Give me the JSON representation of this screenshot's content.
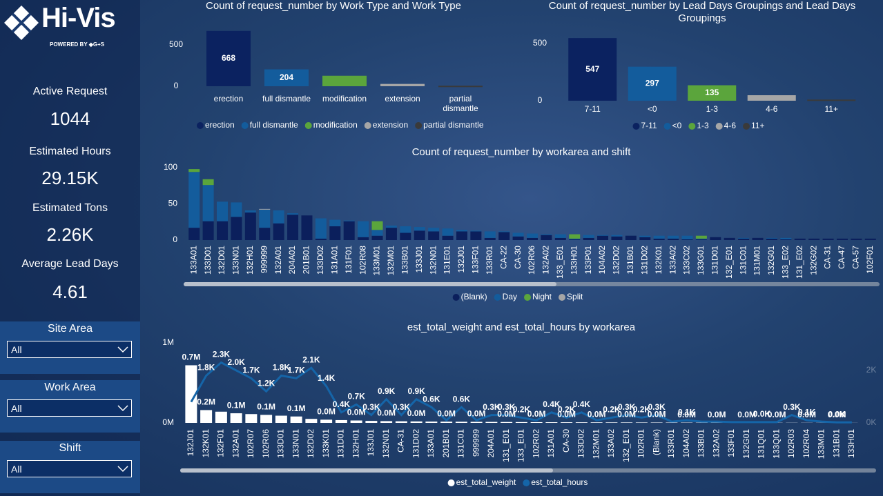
{
  "sidebar": {
    "logo": {
      "name": "Hi-Vis",
      "tagline": "POWERED BY ◆G+S"
    },
    "kpis": [
      {
        "label": "Active Request",
        "value": "1044"
      },
      {
        "label": "Estimated Hours",
        "value": "29.15K"
      },
      {
        "label": "Estimated Tons",
        "value": "2.26K"
      },
      {
        "label": "Average Lead Days",
        "value": "4.61"
      }
    ],
    "slicers": [
      {
        "label": "Site Area",
        "value": "All"
      },
      {
        "label": "Work Area",
        "value": "All"
      },
      {
        "label": "Shift",
        "value": "All"
      }
    ]
  },
  "chart_data": [
    {
      "type": "bar",
      "title": "Count of request_number by Work Type and Work Type",
      "categories": [
        "erection",
        "full dismantle",
        "modification",
        "extension",
        "partial dismantle"
      ],
      "values": [
        668,
        204,
        127,
        28,
        6
      ],
      "colors": [
        "#0b2260",
        "#135c9c",
        "#5ba53c",
        "#a6a6a6",
        "#3a3a3a"
      ],
      "ylim": [
        0,
        700
      ],
      "yticks": [
        0,
        500
      ],
      "legend": "bottom-left"
    },
    {
      "type": "bar",
      "title": "Count of request_number by Lead Days Groupings and Lead Days Groupings",
      "categories": [
        "7-11",
        "<0",
        "1-3",
        "4-6",
        "11+"
      ],
      "values": [
        547,
        297,
        135,
        48,
        10
      ],
      "colors": [
        "#0b2260",
        "#135c9c",
        "#5ba53c",
        "#a6a6a6",
        "#3a3a3a"
      ],
      "ylim": [
        0,
        560
      ],
      "yticks": [
        0,
        500
      ],
      "legend": "bottom"
    },
    {
      "type": "stacked_bar",
      "title": "Count of request_number by workarea and shift",
      "categories": [
        "133A01",
        "133D01",
        "132D01",
        "133N01",
        "132H01",
        "999999",
        "132A01",
        "204A01",
        "201B01",
        "133D02",
        "131A01",
        "131F01",
        "102R08",
        "133M01",
        "132M01",
        "133B01",
        "133J01",
        "132N01",
        "131E01",
        "132J01",
        "133F01",
        "133R01",
        "CA-22",
        "CA-30",
        "102R06",
        "132A02",
        "133_E01",
        "133H01",
        "133P01",
        "104A02",
        "132D02",
        "131B01",
        "131D02",
        "132K01",
        "133A02",
        "133C02",
        "133G01",
        "131D01",
        "132_E01",
        "131C01",
        "131M01",
        "132G01",
        "133_E02",
        "131_E02",
        "132G02",
        "CA-31",
        "CA-47",
        "CA-57",
        "102F01"
      ],
      "series": [
        {
          "name": "(Blank)",
          "color": "#0b1f5c",
          "values": [
            17,
            26,
            26,
            32,
            38,
            17,
            23,
            35,
            34,
            2,
            19,
            26,
            4,
            6,
            17,
            10,
            13,
            12,
            6,
            12,
            12,
            3,
            11,
            5,
            3,
            7,
            3,
            1,
            3,
            6,
            5,
            6,
            4,
            2,
            2,
            1,
            1,
            4,
            3,
            2,
            3,
            2,
            1,
            2,
            2,
            2,
            2,
            2,
            2
          ]
        },
        {
          "name": "Day",
          "color": "#135c9c",
          "values": [
            77,
            50,
            27,
            20,
            3,
            25,
            18,
            2,
            0,
            28,
            9,
            1,
            22,
            8,
            3,
            9,
            5,
            5,
            10,
            2,
            1,
            9,
            1,
            5,
            6,
            1,
            5,
            1,
            4,
            1,
            2,
            0,
            2,
            4,
            4,
            5,
            1,
            0,
            0,
            1,
            0,
            1,
            2,
            0,
            0,
            0,
            0,
            0,
            0
          ]
        },
        {
          "name": "Night",
          "color": "#5ba53c",
          "values": [
            4,
            8,
            0,
            0,
            0,
            0,
            0,
            0,
            0,
            0,
            0,
            0,
            0,
            12,
            0,
            0,
            0,
            0,
            0,
            0,
            0,
            0,
            0,
            0,
            0,
            0,
            0,
            6,
            0,
            0,
            0,
            0,
            0,
            0,
            0,
            0,
            4,
            0,
            0,
            0,
            0,
            0,
            0,
            0,
            0,
            0,
            0,
            0,
            0
          ]
        },
        {
          "name": "Split",
          "color": "#a6a6a6",
          "values": [
            0,
            0,
            0,
            0,
            0,
            1,
            0,
            0,
            0,
            0,
            0,
            0,
            0,
            0,
            0,
            0,
            0,
            0,
            0,
            0,
            0,
            0,
            0,
            0,
            0,
            0,
            0,
            0,
            0,
            0,
            0,
            0,
            0,
            0,
            0,
            0,
            0,
            0,
            0,
            0,
            0,
            0,
            0,
            0,
            0,
            0,
            0,
            0,
            0
          ]
        }
      ],
      "ylim": [
        0,
        100
      ],
      "yticks": [
        0,
        50,
        100
      ],
      "legend": "bottom"
    },
    {
      "type": "combo",
      "title": "est_total_weight and est_total_hours by workarea",
      "categories": [
        "132J01",
        "132K01",
        "132F01",
        "132A01",
        "102R07",
        "102R06",
        "133D01",
        "133N01",
        "132D02",
        "133K01",
        "131D01",
        "132H01",
        "133J01",
        "132N01",
        "CA-31",
        "131D02",
        "133A01",
        "201B01",
        "131C01",
        "999999",
        "204A01",
        "131_E01",
        "133_E01",
        "102R02",
        "131A01",
        "CA-30",
        "133D02",
        "132M01",
        "133A02",
        "132_E01",
        "102R01",
        "(Blank)",
        "133R01",
        "104A02",
        "133B01",
        "132A02",
        "133F01",
        "132G01",
        "131Q01",
        "133Q01",
        "102R03",
        "102R04",
        "133M01",
        "131B01",
        "133H01"
      ],
      "series": [
        {
          "name": "est_total_weight",
          "type": "bar",
          "color": "#ffffff",
          "values": [
            720000,
            160000,
            140000,
            120000,
            110000,
            100000,
            90000,
            80000,
            50000,
            40000,
            35000,
            30000,
            25000,
            22000,
            20000,
            18000,
            16000,
            15000,
            14000,
            13000,
            12000,
            11000,
            10000,
            9000,
            8000,
            7500,
            7000,
            6500,
            6000,
            5500,
            5000,
            4500,
            4000,
            3500,
            3000,
            2800,
            2600,
            2400,
            2200,
            2000,
            1800,
            1600,
            1400,
            1200,
            1000
          ],
          "value_labels": [
            "0.7M",
            "0.2M",
            null,
            "0.1M",
            null,
            "0.1M",
            null,
            "0.1M",
            null,
            "0.0M",
            null,
            "0.0M",
            null,
            "0.0M",
            null,
            "0.0M",
            null,
            "0.0M",
            null,
            "0.0M",
            null,
            "0.0M",
            null,
            "0.0M",
            null,
            "0.0M",
            null,
            "0.0M",
            null,
            "0.0M",
            null,
            "0.0M",
            null,
            "0.0M",
            null,
            "0.0M",
            null,
            "0.0M",
            null,
            "0.0M",
            null,
            "0.0M",
            null,
            "0.0M",
            null
          ]
        },
        {
          "name": "est_total_hours",
          "type": "line",
          "axis": "y2",
          "color": "#1565a8",
          "values": [
            800,
            1800,
            2300,
            2000,
            1700,
            1200,
            1800,
            1700,
            2100,
            1400,
            400,
            700,
            300,
            900,
            300,
            900,
            600,
            100,
            600,
            100,
            300,
            300,
            200,
            100,
            400,
            200,
            400,
            100,
            200,
            300,
            200,
            300,
            50,
            100,
            50,
            50,
            30,
            30,
            30,
            30,
            300,
            100,
            50,
            20,
            20
          ],
          "value_labels": [
            null,
            "1.8K",
            "2.3K",
            "2.0K",
            "1.7K",
            "1.2K",
            "1.8K",
            "1.7K",
            "2.1K",
            "1.4K",
            "0.4K",
            "0.7K",
            "0.3K",
            "0.9K",
            "0.3K",
            "0.9K",
            "0.6K",
            null,
            "0.6K",
            null,
            "0.3K",
            "0.3K",
            "0.2K",
            null,
            "0.4K",
            "0.2K",
            "0.4K",
            null,
            "0.2K",
            "0.3K",
            "0.2K",
            "0.3K",
            null,
            "0.1K",
            null,
            null,
            null,
            null,
            "0.0K",
            null,
            "0.3K",
            "0.1K",
            null,
            "0.0K",
            null
          ]
        }
      ],
      "ylim": [
        0,
        1000000
      ],
      "yticks": [
        {
          "value": 0,
          "label": "0M"
        },
        {
          "value": 1000000,
          "label": "1M"
        }
      ],
      "y2lim": [
        0,
        3050
      ],
      "y2ticks": [
        {
          "value": 0,
          "label": "0K"
        },
        {
          "value": 2000,
          "label": "2K"
        }
      ],
      "legend": "bottom"
    }
  ]
}
